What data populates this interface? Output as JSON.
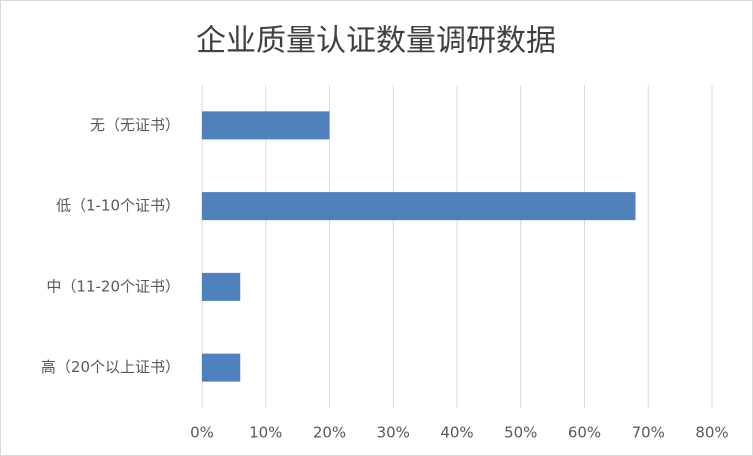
{
  "chart_data": {
    "type": "hbar",
    "title": "企业质量认证数量调研数据",
    "categories": [
      "无（无证书）",
      "低（1-10个证书）",
      "中（11-20个证书）",
      "高（20个以上证书）"
    ],
    "values": [
      20,
      68,
      6,
      6
    ],
    "color": "#4f81bd",
    "xlim": [
      0,
      80
    ],
    "xticks": [
      {
        "value": 0,
        "label": "0%"
      },
      {
        "value": 10,
        "label": "10%"
      },
      {
        "value": 20,
        "label": "20%"
      },
      {
        "value": 30,
        "label": "30%"
      },
      {
        "value": 40,
        "label": "40%"
      },
      {
        "value": 50,
        "label": "50%"
      },
      {
        "value": 60,
        "label": "60%"
      },
      {
        "value": 70,
        "label": "70%"
      },
      {
        "value": 80,
        "label": "80%"
      }
    ],
    "grid": true
  }
}
